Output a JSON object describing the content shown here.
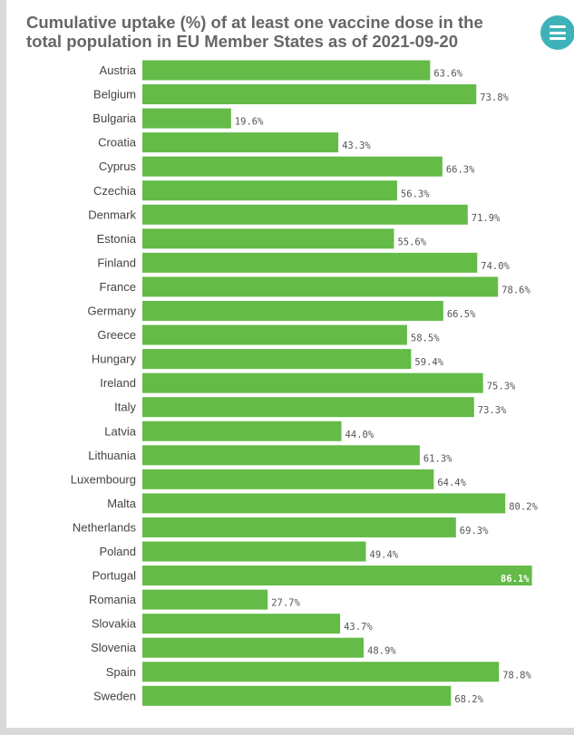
{
  "page": {
    "menu_icon": "hamburger-menu-icon",
    "accent_color": "#3fb2b9"
  },
  "chart_data": {
    "type": "bar",
    "orientation": "horizontal",
    "title": "Cumulative uptake (%) of at least one vaccine dose in the total population in EU Member States as of 2021-09-20",
    "xlabel": "",
    "ylabel": "",
    "xlim": [
      0,
      100
    ],
    "grid": false,
    "bar_color": "#64bb47",
    "categories": [
      "Austria",
      "Belgium",
      "Bulgaria",
      "Croatia",
      "Cyprus",
      "Czechia",
      "Denmark",
      "Estonia",
      "Finland",
      "France",
      "Germany",
      "Greece",
      "Hungary",
      "Ireland",
      "Italy",
      "Latvia",
      "Lithuania",
      "Luxembourg",
      "Malta",
      "Netherlands",
      "Poland",
      "Portugal",
      "Romania",
      "Slovakia",
      "Slovenia",
      "Spain",
      "Sweden"
    ],
    "values": [
      63.6,
      73.8,
      19.6,
      43.3,
      66.3,
      56.3,
      71.9,
      55.6,
      74.0,
      78.6,
      66.5,
      58.5,
      59.4,
      75.3,
      73.3,
      44.0,
      61.3,
      64.4,
      80.2,
      69.3,
      49.4,
      86.1,
      27.7,
      43.7,
      48.9,
      78.8,
      68.2
    ],
    "data_labels": [
      "63.6%",
      "73.8%",
      "19.6%",
      "43.3%",
      "66.3%",
      "56.3%",
      "71.9%",
      "55.6%",
      "74.0%",
      "78.6%",
      "66.5%",
      "58.5%",
      "59.4%",
      "75.3%",
      "73.3%",
      "44.0%",
      "61.3%",
      "64.4%",
      "80.2%",
      "69.3%",
      "49.4%",
      "86.1%",
      "27.7%",
      "43.7%",
      "48.9%",
      "78.8%",
      "68.2%"
    ]
  }
}
